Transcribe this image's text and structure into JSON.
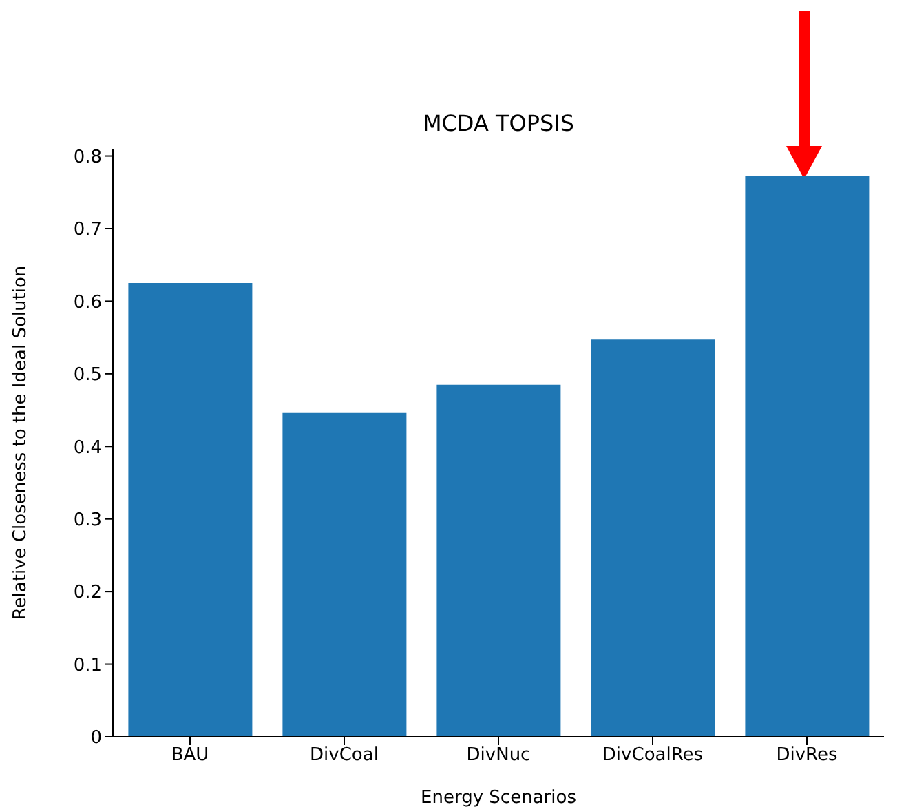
{
  "chart_data": {
    "type": "bar",
    "title": "MCDA TOPSIS",
    "xlabel": "Energy Scenarios",
    "ylabel": "Relative Closeness to the Ideal Solution",
    "categories": [
      "BAU",
      "DivCoal",
      "DivNuc",
      "DivCoalRes",
      "DivRes"
    ],
    "values": [
      0.625,
      0.446,
      0.485,
      0.547,
      0.772
    ],
    "color": "#1f77b4",
    "ylim": [
      0,
      0.81
    ],
    "yticks": [
      0,
      0.1,
      0.2,
      0.3,
      0.4,
      0.5,
      0.6,
      0.7,
      0.8
    ],
    "grid": false
  }
}
